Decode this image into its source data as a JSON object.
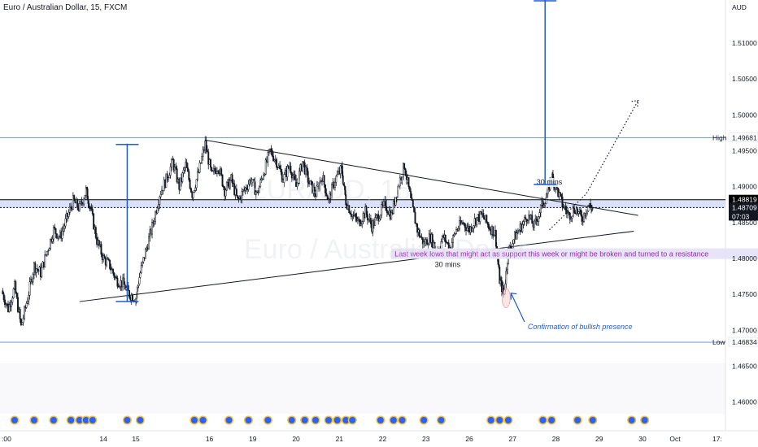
{
  "chart_data": {
    "type": "candlestick",
    "title": "Euro / Australian Dollar, 15, FXCM",
    "currency": "AUD",
    "watermark": {
      "symbol": "EURAUD, 15",
      "name": "Euro / Australian Dollar"
    },
    "y_axis": {
      "ylim": [
        1.4585,
        1.516
      ],
      "ticks": [
        {
          "value": 1.51,
          "label": "1.51000"
        },
        {
          "value": 1.505,
          "label": "1.50500"
        },
        {
          "value": 1.5,
          "label": "1.50000"
        },
        {
          "value": 1.495,
          "label": "1.49500"
        },
        {
          "value": 1.49,
          "label": "1.49000"
        },
        {
          "value": 1.485,
          "label": "1.48500"
        },
        {
          "value": 1.48,
          "label": "1.48000"
        },
        {
          "value": 1.475,
          "label": "1.47500"
        },
        {
          "value": 1.47,
          "label": "1.47000"
        },
        {
          "value": 1.465,
          "label": "1.46500"
        },
        {
          "value": 1.46,
          "label": "1.46000"
        }
      ]
    },
    "x_axis": {
      "xlim": [
        0,
        29.6
      ],
      "ticks": [
        {
          "value": 0,
          "label": ":00"
        },
        {
          "value": 4.7,
          "label": "14"
        },
        {
          "value": 6.2,
          "label": "15"
        },
        {
          "value": 9.6,
          "label": "16"
        },
        {
          "value": 11.6,
          "label": "19"
        },
        {
          "value": 13.6,
          "label": "20"
        },
        {
          "value": 15.6,
          "label": "21"
        },
        {
          "value": 17.6,
          "label": "22"
        },
        {
          "value": 19.6,
          "label": "23"
        },
        {
          "value": 21.6,
          "label": "26"
        },
        {
          "value": 23.6,
          "label": "27"
        },
        {
          "value": 25.6,
          "label": "28"
        },
        {
          "value": 27.6,
          "label": "29"
        },
        {
          "value": 29.6,
          "label": "30"
        }
      ]
    },
    "extra_x_labels": [
      "Oct",
      "17:"
    ],
    "price_path": [
      [
        0,
        1.4755
      ],
      [
        0.3,
        1.473
      ],
      [
        0.6,
        1.476
      ],
      [
        0.9,
        1.4705
      ],
      [
        1.2,
        1.4745
      ],
      [
        1.5,
        1.479
      ],
      [
        1.8,
        1.478
      ],
      [
        2.1,
        1.481
      ],
      [
        2.4,
        1.484
      ],
      [
        2.7,
        1.483
      ],
      [
        3.0,
        1.4855
      ],
      [
        3.3,
        1.488
      ],
      [
        3.6,
        1.487
      ],
      [
        3.9,
        1.4895
      ],
      [
        4.1,
        1.487
      ],
      [
        4.4,
        1.4825
      ],
      [
        4.7,
        1.48
      ],
      [
        5.0,
        1.479
      ],
      [
        5.3,
        1.477
      ],
      [
        5.6,
        1.4765
      ],
      [
        5.9,
        1.475
      ],
      [
        6.2,
        1.4745
      ],
      [
        6.4,
        1.478
      ],
      [
        6.7,
        1.4815
      ],
      [
        7.0,
        1.485
      ],
      [
        7.3,
        1.489
      ],
      [
        7.6,
        1.491
      ],
      [
        7.9,
        1.4935
      ],
      [
        8.2,
        1.49
      ],
      [
        8.5,
        1.493
      ],
      [
        8.8,
        1.489
      ],
      [
        9.1,
        1.492
      ],
      [
        9.4,
        1.496
      ],
      [
        9.7,
        1.4915
      ],
      [
        10.0,
        1.493
      ],
      [
        10.3,
        1.4895
      ],
      [
        10.6,
        1.491
      ],
      [
        10.9,
        1.488
      ],
      [
        11.2,
        1.4895
      ],
      [
        11.5,
        1.491
      ],
      [
        11.8,
        1.489
      ],
      [
        12.1,
        1.492
      ],
      [
        12.4,
        1.495
      ],
      [
        12.7,
        1.4935
      ],
      [
        13.0,
        1.491
      ],
      [
        13.3,
        1.493
      ],
      [
        13.6,
        1.49
      ],
      [
        13.9,
        1.4935
      ],
      [
        14.2,
        1.4905
      ],
      [
        14.5,
        1.489
      ],
      [
        14.8,
        1.4915
      ],
      [
        15.1,
        1.488
      ],
      [
        15.4,
        1.491
      ],
      [
        15.7,
        1.4925
      ],
      [
        15.9,
        1.488
      ],
      [
        16.2,
        1.486
      ],
      [
        16.5,
        1.485
      ],
      [
        16.8,
        1.4865
      ],
      [
        17.1,
        1.4845
      ],
      [
        17.4,
        1.486
      ],
      [
        17.7,
        1.4875
      ],
      [
        18.0,
        1.486
      ],
      [
        18.3,
        1.49
      ],
      [
        18.6,
        1.493
      ],
      [
        18.9,
        1.488
      ],
      [
        19.2,
        1.484
      ],
      [
        19.5,
        1.482
      ],
      [
        19.8,
        1.483
      ],
      [
        20.1,
        1.481
      ],
      [
        20.4,
        1.483
      ],
      [
        20.7,
        1.4815
      ],
      [
        21.0,
        1.484
      ],
      [
        21.3,
        1.485
      ],
      [
        21.6,
        1.484
      ],
      [
        21.9,
        1.4855
      ],
      [
        22.2,
        1.486
      ],
      [
        22.5,
        1.4845
      ],
      [
        22.8,
        1.4835
      ],
      [
        23.0,
        1.477
      ],
      [
        23.2,
        1.475
      ],
      [
        23.4,
        1.481
      ],
      [
        23.7,
        1.483
      ],
      [
        24.0,
        1.4845
      ],
      [
        24.3,
        1.486
      ],
      [
        24.6,
        1.4845
      ],
      [
        24.9,
        1.487
      ],
      [
        25.2,
        1.489
      ],
      [
        25.4,
        1.4915
      ],
      [
        25.6,
        1.49
      ],
      [
        25.9,
        1.4875
      ],
      [
        26.2,
        1.486
      ],
      [
        26.5,
        1.487
      ],
      [
        26.8,
        1.4855
      ],
      [
        27.1,
        1.4875
      ],
      [
        27.3,
        1.487
      ]
    ],
    "horizontal_levels": [
      {
        "name": "High",
        "value": 1.49681,
        "label": "1.49681",
        "color": "#5b8fdc"
      },
      {
        "name": "Low",
        "value": 1.46834,
        "label": "1.46834",
        "color": "#5b8fdc"
      },
      {
        "value": 1.48819,
        "label": "1.48819",
        "color": "#000000"
      },
      {
        "value": 1.48709,
        "label": "1.48709",
        "color": "#131722",
        "countdown": "07:03"
      }
    ],
    "zone": {
      "from": 1.487,
      "to": 1.4882,
      "color": "#cfd8f5"
    },
    "trend_lines": [
      {
        "x1": 9.4,
        "y1": 1.4965,
        "x2": 29.4,
        "y2": 1.486,
        "label": "30 mins",
        "label_at": [
          25.3,
          1.4903
        ]
      },
      {
        "x1": 3.6,
        "y1": 1.474,
        "x2": 29.2,
        "y2": 1.4838,
        "label": "30 mins",
        "label_at": [
          20.6,
          1.4788
        ]
      }
    ],
    "measure_lines": [
      {
        "x": 5.8,
        "y_top": 1.496,
        "y_bottom": 1.474,
        "color": "#1e5bd6"
      },
      {
        "x": 25.1,
        "y_top": 1.516,
        "y_bottom": 1.4903,
        "color": "#1e5bd6"
      }
    ],
    "projection": [
      [
        25.3,
        1.484
      ],
      [
        27.0,
        1.489
      ],
      [
        29.4,
        1.502
      ]
    ],
    "annotations": [
      {
        "text": "Last week lows that might act as support this week or might be broken and turned to a resistance",
        "x": 19.5,
        "y": 1.4805,
        "color": "#9c27b0",
        "bg": "#e8e4f7"
      },
      {
        "text": "Confirmation of bullish presence",
        "x": 24.3,
        "y": 1.4705,
        "color": "#1e5bd6"
      }
    ],
    "highlight_circle": {
      "x": 23.3,
      "y": 1.4745
    },
    "event_icons": [
      0.6,
      1.5,
      2.4,
      3.2,
      3.6,
      3.9,
      4.2,
      5.8,
      6.4,
      8.9,
      9.3,
      10.5,
      11.4,
      12.3,
      13.4,
      14.0,
      14.5,
      15.1,
      15.5,
      15.9,
      16.2,
      17.5,
      18.1,
      18.5,
      19.5,
      20.3,
      22.6,
      23.0,
      23.4,
      25.0,
      25.4,
      26.6,
      27.3,
      29.1,
      29.7
    ]
  }
}
